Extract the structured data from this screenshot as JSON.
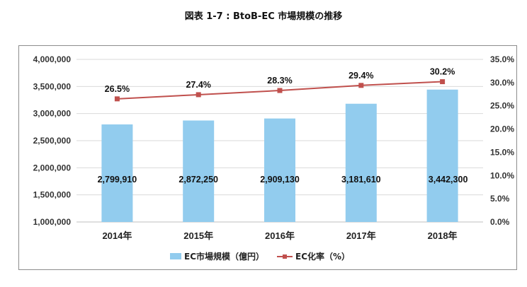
{
  "figure": {
    "title": "図表 1-7 : BtoB-EC 市場規模の推移"
  },
  "chart_data": {
    "type": "bar",
    "categories": [
      "2014年",
      "2015年",
      "2016年",
      "2017年",
      "2018年"
    ],
    "series": [
      {
        "name": "EC市場規模（億円）",
        "type": "bar",
        "axis": "left",
        "values": [
          2799910,
          2872250,
          2909130,
          3181610,
          3442300
        ],
        "labels": [
          "2,799,910",
          "2,872,250",
          "2,909,130",
          "3,181,610",
          "3,442,300"
        ],
        "color": "#92ccee"
      },
      {
        "name": "EC化率（%）",
        "type": "line",
        "axis": "right",
        "values": [
          26.5,
          27.4,
          28.3,
          29.4,
          30.2
        ],
        "labels": [
          "26.5%",
          "27.4%",
          "28.3%",
          "29.4%",
          "30.2%"
        ],
        "color": "#c0504d"
      }
    ],
    "left_axis": {
      "ylim": [
        1000000,
        4000000
      ],
      "ticks": [
        "1,000,000",
        "1,500,000",
        "2,000,000",
        "2,500,000",
        "3,000,000",
        "3,500,000",
        "4,000,000"
      ],
      "tick_values": [
        1000000,
        1500000,
        2000000,
        2500000,
        3000000,
        3500000,
        4000000
      ]
    },
    "right_axis": {
      "ylim": [
        0,
        35
      ],
      "ticks": [
        "0.0%",
        "5.0%",
        "10.0%",
        "15.0%",
        "20.0%",
        "25.0%",
        "30.0%",
        "35.0%"
      ],
      "tick_values": [
        0,
        5,
        10,
        15,
        20,
        25,
        30,
        35
      ]
    },
    "grid": true,
    "legend_position": "bottom"
  }
}
